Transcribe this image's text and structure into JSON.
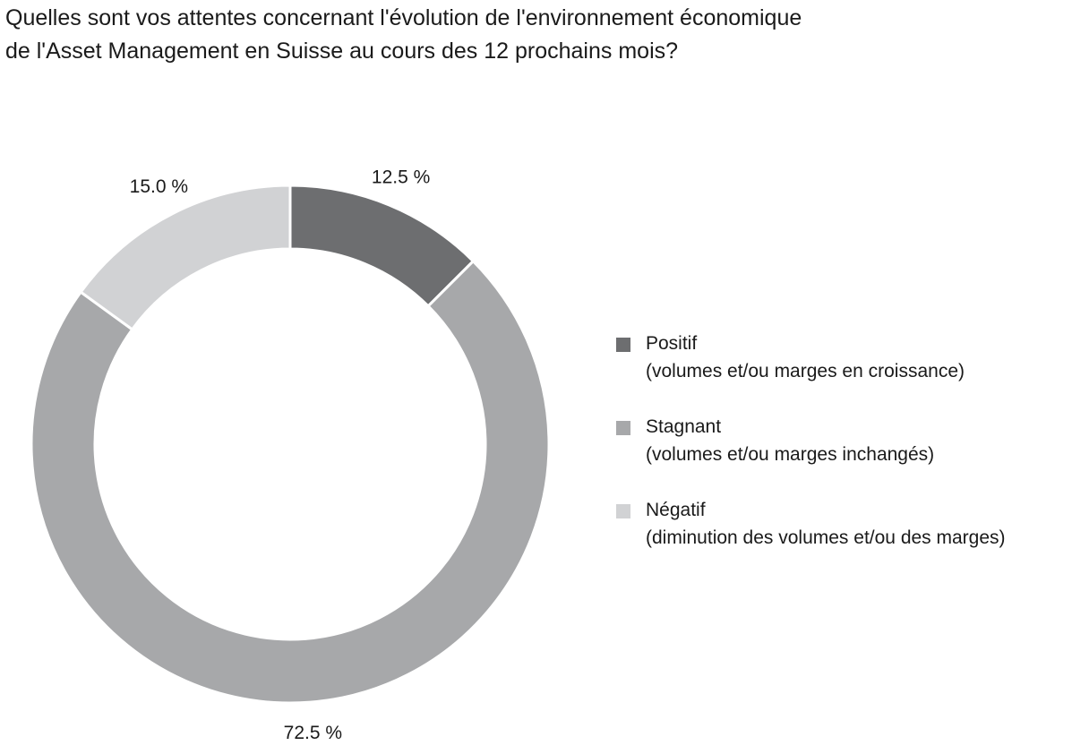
{
  "chart_data": {
    "type": "pie",
    "title": [
      "Quelles sont vos attentes concernant l'évolution de l'environnement économique",
      "de l'Asset Management en Suisse au cours des 12 prochains mois?"
    ],
    "series": [
      {
        "name": "Positif",
        "description": "(volumes et/ou marges en croissance)",
        "value": 12.5,
        "label": "12.5 %",
        "color": "#6d6e70"
      },
      {
        "name": "Stagnant",
        "description": "(volumes et/ou marges inchangés)",
        "value": 72.5,
        "label": "72.5 %",
        "color": "#a7a8aa"
      },
      {
        "name": "Négatif",
        "description": "(diminution des volumes et/ou des marges)",
        "value": 15.0,
        "label": "15.0 %",
        "color": "#d1d2d4"
      }
    ],
    "donut": true,
    "legend_position": "right"
  }
}
